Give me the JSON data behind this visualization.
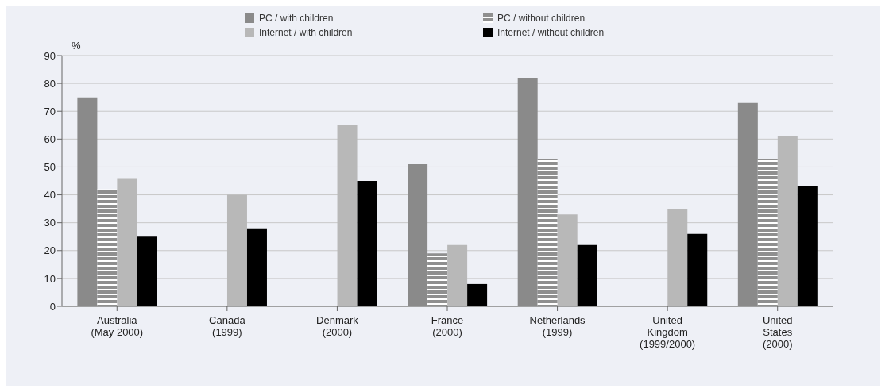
{
  "chart_data": {
    "type": "bar",
    "ylabel": "%",
    "categories": [
      "Australia\n(May 2000)",
      "Canada\n(1999)",
      "Denmark\n(2000)",
      "France\n(2000)",
      "Netherlands\n(1999)",
      "United\nKingdom\n(1999/2000)",
      "United\nStates\n(2000)"
    ],
    "series": [
      {
        "name": "PC / with children",
        "color": "#8a8a8a",
        "values": [
          75,
          null,
          null,
          51,
          82,
          null,
          73
        ]
      },
      {
        "name": "PC / without children",
        "color": "#8f8f8f",
        "values": [
          42,
          null,
          null,
          19,
          53,
          null,
          53
        ]
      },
      {
        "name": "Internet / with children",
        "color": "#b8b8b8",
        "values": [
          46,
          40,
          65,
          22,
          33,
          35,
          61
        ]
      },
      {
        "name": "Internet / without children",
        "color": "#000000",
        "values": [
          25,
          28,
          45,
          8,
          22,
          26,
          43
        ]
      }
    ],
    "ylim": [
      0,
      90
    ],
    "yticks": [
      0,
      10,
      20,
      30,
      40,
      50,
      60,
      70,
      80,
      90
    ],
    "grid": "y",
    "legend": "top"
  }
}
